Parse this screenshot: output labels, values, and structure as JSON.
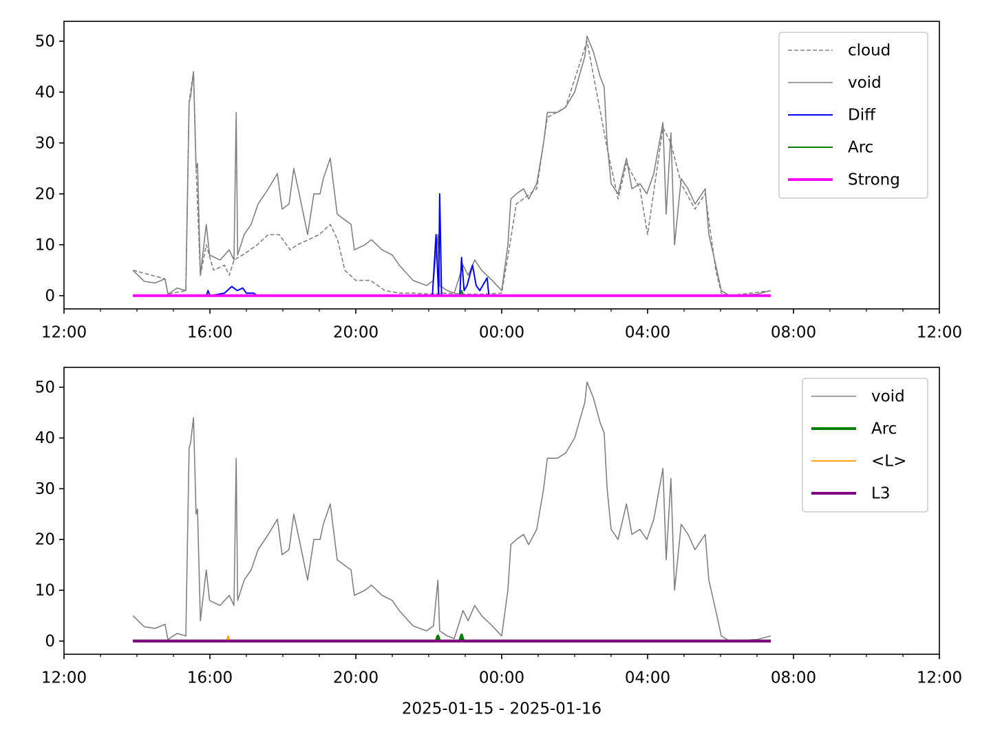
{
  "chart_data": [
    {
      "type": "line",
      "xlim": [
        12,
        36
      ],
      "ylim": [
        -2.6,
        53.9
      ],
      "xticks": [
        {
          "value": 12,
          "label": "12:00"
        },
        {
          "value": 16,
          "label": "16:00"
        },
        {
          "value": 20,
          "label": "20:00"
        },
        {
          "value": 24,
          "label": "00:00"
        },
        {
          "value": 28,
          "label": "04:00"
        },
        {
          "value": 32,
          "label": "08:00"
        },
        {
          "value": 36,
          "label": "12:00"
        }
      ],
      "xminorticks": [
        13,
        14,
        15,
        17,
        18,
        19,
        21,
        22,
        23,
        25,
        26,
        27,
        29,
        30,
        31,
        33,
        34,
        35
      ],
      "yticks": [
        0,
        10,
        20,
        30,
        40,
        50
      ],
      "legend": "upper right",
      "series": [
        {
          "name": "cloud",
          "color": "#808080",
          "linestyle": "dashed",
          "linewidth": 1.6,
          "x": [
            13.89,
            14.77,
            14.85,
            15.34,
            15.43,
            15.55,
            15.62,
            15.74,
            15.9,
            16.1,
            16.4,
            16.53,
            16.66,
            16.9,
            17.3,
            17.6,
            17.9,
            18.2,
            18.4,
            18.7,
            19.0,
            19.3,
            19.5,
            19.7,
            20.0,
            20.4,
            20.8,
            21.2,
            21.6,
            22.0,
            22.4,
            23.0,
            23.5,
            24.0,
            24.2,
            24.4,
            24.96,
            25.25,
            25.75,
            26.34,
            26.89,
            27.19,
            27.42,
            27.79,
            28.0,
            28.42,
            28.64,
            28.92,
            29.3,
            29.58,
            29.87,
            30.02,
            30.25,
            31.38
          ],
          "values": [
            5,
            3.3,
            0.3,
            1,
            38,
            44,
            25,
            4,
            10,
            5,
            6,
            4,
            7,
            8,
            10,
            12,
            12,
            9,
            10,
            11,
            12,
            14,
            11,
            5,
            3,
            3,
            1,
            0.5,
            0.5,
            0.3,
            0.5,
            0.3,
            0.3,
            0.5,
            9,
            18,
            21,
            35,
            37,
            50,
            29,
            19,
            26,
            21,
            12,
            33,
            30,
            22,
            17,
            20,
            5,
            0.5,
            0,
            1
          ]
        },
        {
          "name": "void",
          "color": "#808080",
          "linestyle": "solid",
          "linewidth": 1.6,
          "x": [
            13.89,
            14.2,
            14.5,
            14.77,
            14.85,
            15.1,
            15.34,
            15.43,
            15.47,
            15.55,
            15.62,
            15.66,
            15.74,
            15.9,
            15.99,
            16.28,
            16.53,
            16.66,
            16.72,
            16.76,
            16.94,
            17.13,
            17.32,
            17.6,
            17.85,
            17.98,
            18.17,
            18.3,
            18.45,
            18.68,
            18.85,
            19.02,
            19.11,
            19.3,
            19.49,
            19.68,
            19.87,
            19.96,
            20.25,
            20.43,
            20.72,
            21.0,
            21.19,
            21.57,
            21.94,
            22.13,
            22.25,
            22.3,
            22.51,
            22.7,
            22.94,
            23.08,
            23.26,
            23.45,
            23.74,
            24.0,
            24.17,
            24.25,
            24.4,
            24.6,
            24.74,
            24.96,
            25.15,
            25.25,
            25.53,
            25.75,
            26.0,
            26.28,
            26.34,
            26.51,
            26.7,
            26.81,
            26.89,
            27.0,
            27.19,
            27.42,
            27.57,
            27.79,
            27.98,
            28.17,
            28.42,
            28.51,
            28.64,
            28.74,
            28.92,
            29.11,
            29.3,
            29.58,
            29.68,
            29.87,
            30.02,
            30.25,
            31.0,
            31.38
          ],
          "values": [
            5,
            2.8,
            2.5,
            3.3,
            0.3,
            1.5,
            1,
            38,
            39,
            44,
            25,
            26,
            4,
            14,
            8,
            7,
            9,
            7,
            36,
            8,
            12,
            14,
            18,
            21,
            24,
            17,
            18,
            25,
            20,
            12,
            20,
            20,
            23,
            27,
            16,
            15,
            14,
            9,
            10,
            11,
            9,
            8,
            6,
            3,
            2,
            3,
            12,
            2,
            1,
            0.5,
            6,
            4,
            7,
            5,
            3,
            1,
            10,
            19,
            20,
            21,
            19,
            22,
            30,
            36,
            36,
            37,
            40,
            47,
            51,
            48,
            43,
            41,
            30,
            22,
            20,
            27,
            21,
            22,
            20,
            24,
            34,
            16,
            32,
            10,
            23,
            21,
            18,
            21,
            12,
            6,
            1,
            0,
            0.3,
            1
          ]
        },
        {
          "name": "Diff",
          "color": "#0000ff",
          "linestyle": "solid",
          "linewidth": 2,
          "x": [
            13.89,
            15.9,
            15.95,
            16.0,
            16.4,
            16.6,
            16.75,
            16.9,
            17.0,
            17.2,
            17.3,
            22.1,
            22.2,
            22.27,
            22.3,
            22.35,
            22.45,
            22.85,
            22.9,
            22.97,
            23.05,
            23.2,
            23.3,
            23.4,
            23.6,
            23.65,
            23.7,
            31.38
          ],
          "values": [
            0,
            0,
            1,
            0,
            0.5,
            1.8,
            1,
            1.5,
            0.5,
            0.5,
            0,
            0,
            12,
            0,
            20,
            0,
            0,
            0,
            7.5,
            1,
            2,
            6,
            2,
            1,
            3.5,
            0,
            0,
            0
          ]
        },
        {
          "name": "Arc",
          "color": "#008000",
          "linestyle": "solid",
          "linewidth": 2,
          "x": [
            13.89,
            22.85,
            22.9,
            22.95,
            31.38
          ],
          "values": [
            0,
            0,
            1,
            0,
            0
          ]
        },
        {
          "name": "Strong",
          "color": "#ff00ff",
          "linestyle": "solid",
          "linewidth": 4,
          "x": [
            13.89,
            31.38
          ],
          "values": [
            0,
            0
          ]
        }
      ]
    },
    {
      "type": "line",
      "xlim": [
        12,
        36
      ],
      "ylim": [
        -2.6,
        53.9
      ],
      "xlabel": "2025-01-15 - 2025-01-16",
      "xticks": [
        {
          "value": 12,
          "label": "12:00"
        },
        {
          "value": 16,
          "label": "16:00"
        },
        {
          "value": 20,
          "label": "20:00"
        },
        {
          "value": 24,
          "label": "00:00"
        },
        {
          "value": 28,
          "label": "04:00"
        },
        {
          "value": 32,
          "label": "08:00"
        },
        {
          "value": 36,
          "label": "12:00"
        }
      ],
      "xminorticks": [
        13,
        14,
        15,
        17,
        18,
        19,
        21,
        22,
        23,
        25,
        26,
        27,
        29,
        30,
        31,
        33,
        34,
        35
      ],
      "yticks": [
        0,
        10,
        20,
        30,
        40,
        50
      ],
      "legend": "upper right",
      "series": [
        {
          "name": "void",
          "color": "#808080",
          "linestyle": "solid",
          "linewidth": 1.6,
          "x": [
            13.89,
            14.2,
            14.5,
            14.77,
            14.85,
            15.1,
            15.34,
            15.43,
            15.47,
            15.55,
            15.62,
            15.66,
            15.74,
            15.9,
            15.99,
            16.28,
            16.53,
            16.66,
            16.72,
            16.76,
            16.94,
            17.13,
            17.32,
            17.6,
            17.85,
            17.98,
            18.17,
            18.3,
            18.45,
            18.68,
            18.85,
            19.02,
            19.11,
            19.3,
            19.49,
            19.68,
            19.87,
            19.96,
            20.25,
            20.43,
            20.72,
            21.0,
            21.19,
            21.57,
            21.94,
            22.13,
            22.25,
            22.3,
            22.51,
            22.7,
            22.94,
            23.08,
            23.26,
            23.45,
            23.74,
            24.0,
            24.17,
            24.25,
            24.4,
            24.6,
            24.74,
            24.96,
            25.15,
            25.25,
            25.53,
            25.75,
            26.0,
            26.28,
            26.34,
            26.51,
            26.7,
            26.81,
            26.89,
            27.0,
            27.19,
            27.42,
            27.57,
            27.79,
            27.98,
            28.17,
            28.42,
            28.51,
            28.64,
            28.74,
            28.92,
            29.11,
            29.3,
            29.58,
            29.68,
            29.87,
            30.02,
            30.25,
            31.0,
            31.38
          ],
          "values": [
            5,
            2.8,
            2.5,
            3.3,
            0.3,
            1.5,
            1,
            38,
            39,
            44,
            25,
            26,
            4,
            14,
            8,
            7,
            9,
            7,
            36,
            8,
            12,
            14,
            18,
            21,
            24,
            17,
            18,
            25,
            20,
            12,
            20,
            20,
            23,
            27,
            16,
            15,
            14,
            9,
            10,
            11,
            9,
            8,
            6,
            3,
            2,
            3,
            12,
            2,
            1,
            0.5,
            6,
            4,
            7,
            5,
            3,
            1,
            10,
            19,
            20,
            21,
            19,
            22,
            30,
            36,
            36,
            37,
            40,
            47,
            51,
            48,
            43,
            41,
            30,
            22,
            20,
            27,
            21,
            22,
            20,
            24,
            34,
            16,
            32,
            10,
            23,
            21,
            18,
            21,
            12,
            6,
            1,
            0,
            0.3,
            1
          ]
        },
        {
          "name": "Arc",
          "color": "#008000",
          "linestyle": "solid",
          "linewidth": 4,
          "x": [
            13.89,
            22.2,
            22.25,
            22.3,
            22.85,
            22.9,
            22.95,
            31.38
          ],
          "values": [
            0,
            0,
            1,
            0,
            0,
            1.2,
            0,
            0
          ]
        },
        {
          "name": "<L>",
          "color": "#ffa500",
          "linestyle": "solid",
          "linewidth": 2,
          "x": [
            13.89,
            16.45,
            16.5,
            16.55,
            31.38
          ],
          "values": [
            0,
            0,
            1,
            0,
            0
          ]
        },
        {
          "name": "L3",
          "color": "#800080",
          "linestyle": "solid",
          "linewidth": 4,
          "x": [
            13.89,
            31.38
          ],
          "values": [
            0,
            0
          ]
        }
      ]
    }
  ]
}
